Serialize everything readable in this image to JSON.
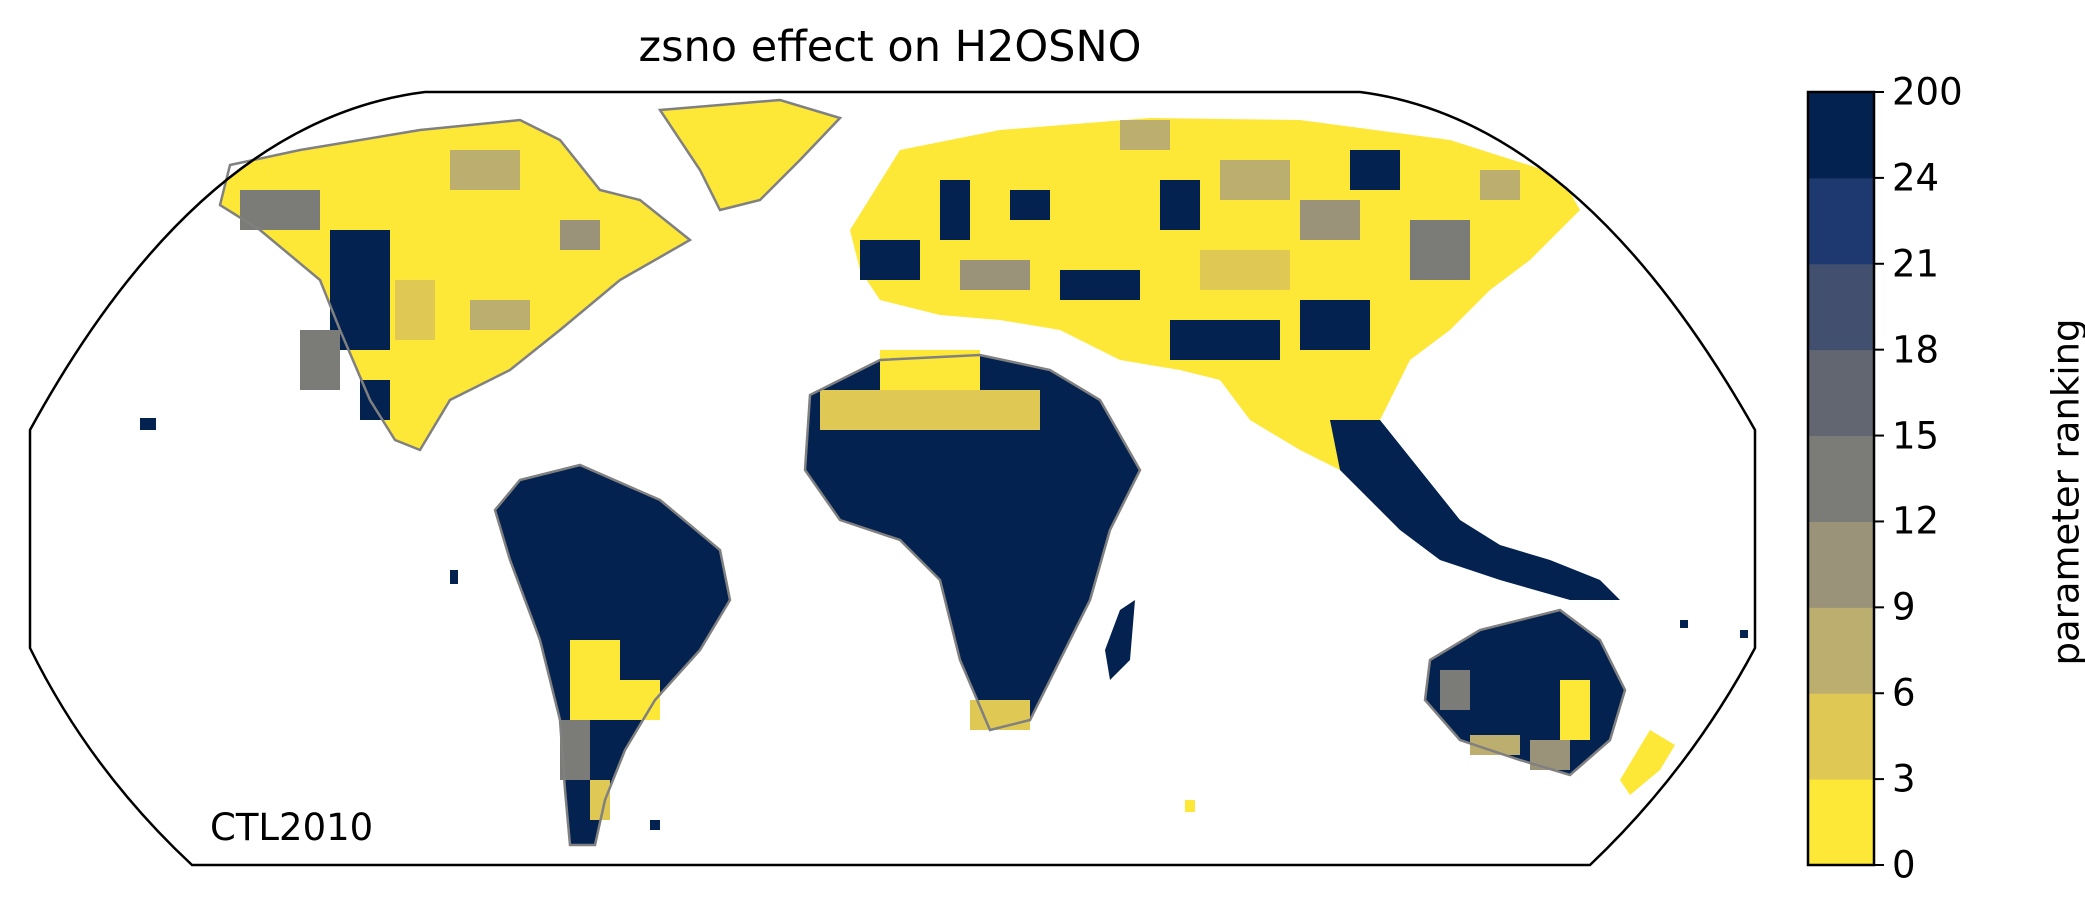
{
  "title": "zsno effect on H2OSNO",
  "corner_label": "CTL2010",
  "colorbar": {
    "label": "parameter ranking",
    "ticks": [
      "0",
      "3",
      "6",
      "9",
      "12",
      "15",
      "18",
      "21",
      "24",
      "200"
    ],
    "colors": [
      "#fde737",
      "#dfc954",
      "#bcae6f",
      "#9a9279",
      "#7b7b78",
      "#626670",
      "#434f6e",
      "#1e3970",
      "#04224f"
    ]
  },
  "map": {
    "projection": "robinson",
    "coastline_color": "#808080",
    "outline_color": "#000000"
  }
}
